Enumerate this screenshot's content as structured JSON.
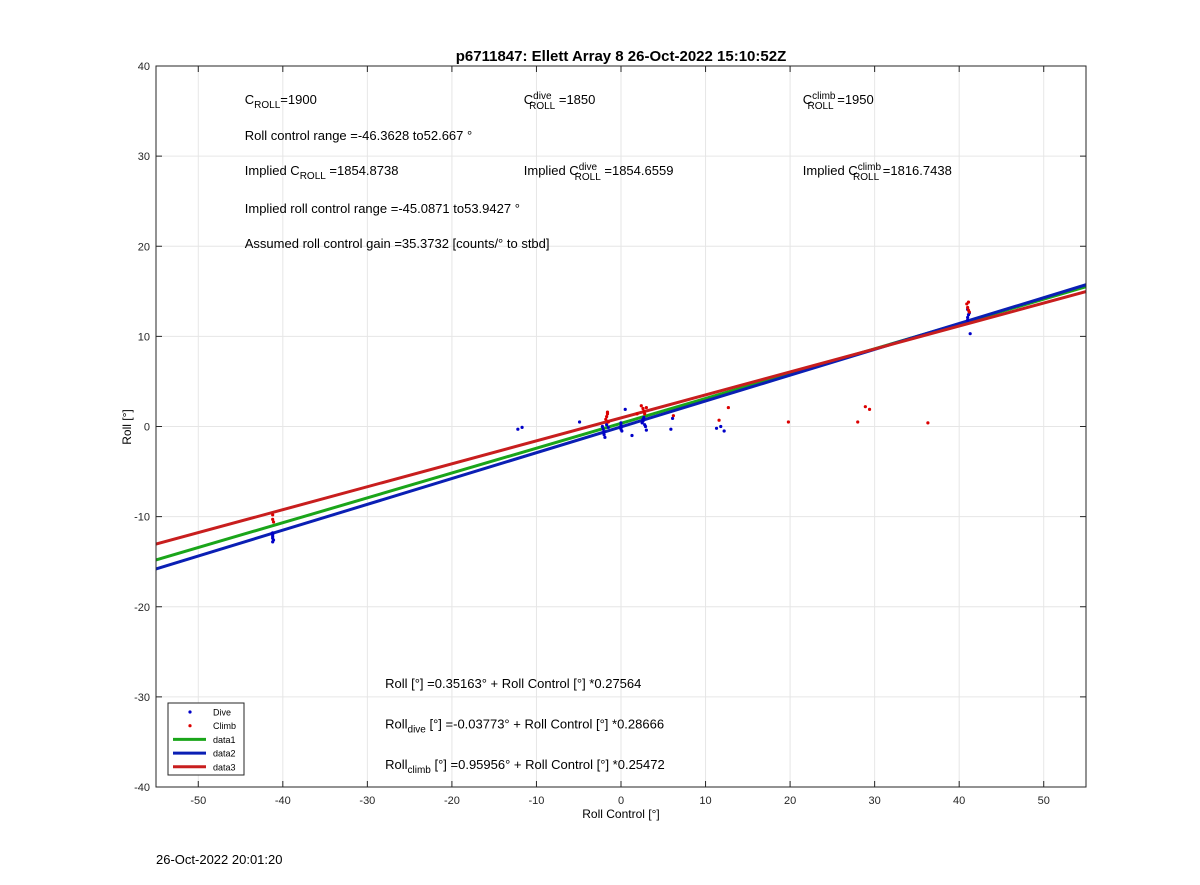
{
  "footer_timestamp": "26-Oct-2022 20:01:20",
  "colors": {
    "dive": "#0000c8",
    "climb": "#dc0000",
    "data1": "#1aa51a",
    "data2": "#0a1fb4",
    "data3": "#c81e1e",
    "grid": "#e6e6e6",
    "axis": "#262626"
  },
  "chart_data": {
    "type": "scatter",
    "title": "p6711847: Ellett Array 8 26-Oct-2022 15:10:52Z",
    "xlabel": "Roll Control [°]",
    "ylabel": "Roll [°]",
    "xlim": [
      -55,
      55
    ],
    "ylim": [
      -40,
      40
    ],
    "xticks": [
      -50,
      -40,
      -30,
      -20,
      -10,
      0,
      10,
      20,
      30,
      40,
      50
    ],
    "yticks": [
      -40,
      -30,
      -20,
      -10,
      0,
      10,
      20,
      30,
      40
    ],
    "grid": true,
    "legend_position": "bottom-left",
    "annotations": [
      {
        "id": "c-roll",
        "parts": [
          {
            "t": "C"
          },
          {
            "sub": "ROLL"
          },
          {
            "t": "=1900"
          }
        ],
        "x": -44.5,
        "y": 35.8
      },
      {
        "id": "c-roll-dive",
        "parts": [
          {
            "t": "C"
          },
          {
            "supsub": [
              "dive",
              "ROLL"
            ]
          },
          {
            "t": " =1850"
          }
        ],
        "x": -11.5,
        "y": 35.8
      },
      {
        "id": "c-roll-climb",
        "parts": [
          {
            "t": "C"
          },
          {
            "supsub": [
              "climb",
              "ROLL"
            ]
          },
          {
            "t": " =1950"
          }
        ],
        "x": 21.5,
        "y": 35.8
      },
      {
        "id": "roll-control-range",
        "parts": [
          {
            "t": "Roll control range =-46.3628 to52.667 °"
          }
        ],
        "x": -44.5,
        "y": 31.8
      },
      {
        "id": "implied-c-roll",
        "parts": [
          {
            "t": "Implied C"
          },
          {
            "sub": "ROLL"
          },
          {
            "t": " =1854.8738"
          }
        ],
        "x": -44.5,
        "y": 27.9
      },
      {
        "id": "implied-c-roll-dive",
        "parts": [
          {
            "t": "Implied C"
          },
          {
            "supsub": [
              "dive",
              "ROLL"
            ]
          },
          {
            "t": " =1854.6559"
          }
        ],
        "x": -11.5,
        "y": 27.9
      },
      {
        "id": "implied-c-roll-climb",
        "parts": [
          {
            "t": "Implied C"
          },
          {
            "supsub": [
              "climb",
              "ROLL"
            ]
          },
          {
            "t": " =1816.7438"
          }
        ],
        "x": 21.5,
        "y": 27.9
      },
      {
        "id": "implied-range",
        "parts": [
          {
            "t": "Implied roll control range =-45.0871 to53.9427 °"
          }
        ],
        "x": -44.5,
        "y": 23.7
      },
      {
        "id": "gain",
        "parts": [
          {
            "t": "Assumed roll control gain =35.3732 [counts/° to stbd]"
          }
        ],
        "x": -44.5,
        "y": 19.8
      },
      {
        "id": "eq-roll",
        "parts": [
          {
            "t": "Roll [°] =0.35163° + Roll Control [°] *0.27564"
          }
        ],
        "x": -27.9,
        "y": -29.0
      },
      {
        "id": "eq-roll-dive",
        "parts": [
          {
            "t": "Roll"
          },
          {
            "sub": "dive"
          },
          {
            "t": " [°] =-0.03773° + Roll Control [°] *0.28666"
          }
        ],
        "x": -27.9,
        "y": -33.5
      },
      {
        "id": "eq-roll-climb",
        "parts": [
          {
            "t": "Roll"
          },
          {
            "sub": "climb"
          },
          {
            "t": " [°] =0.95956° + Roll Control [°] *0.25472"
          }
        ],
        "x": -27.9,
        "y": -38.0
      }
    ],
    "series": [
      {
        "name": "Dive",
        "kind": "points",
        "color": "#0000c8",
        "points": [
          [
            -41.2,
            -11.8
          ],
          [
            -41.2,
            -12.0
          ],
          [
            -41.2,
            -12.2
          ],
          [
            -41.2,
            -12.4
          ],
          [
            -41.1,
            -12.6
          ],
          [
            -41.3,
            -11.9
          ],
          [
            -41.2,
            -12.8
          ],
          [
            -12.2,
            -0.3
          ],
          [
            -11.7,
            -0.1
          ],
          [
            -4.9,
            0.5
          ],
          [
            -2.2,
            0.0
          ],
          [
            -2.1,
            -0.3
          ],
          [
            -2.0,
            -0.6
          ],
          [
            -2.0,
            -0.9
          ],
          [
            -1.9,
            -1.2
          ],
          [
            -1.7,
            0.2
          ],
          [
            -1.5,
            -0.1
          ],
          [
            0.0,
            0.1
          ],
          [
            0.0,
            -0.1
          ],
          [
            0.0,
            -0.3
          ],
          [
            0.1,
            -0.5
          ],
          [
            0.0,
            0.4
          ],
          [
            0.5,
            1.9
          ],
          [
            1.3,
            -1.0
          ],
          [
            2.5,
            0.4
          ],
          [
            2.6,
            0.6
          ],
          [
            2.6,
            0.8
          ],
          [
            2.7,
            1.0
          ],
          [
            2.8,
            0.2
          ],
          [
            2.9,
            0.0
          ],
          [
            3.0,
            -0.4
          ],
          [
            5.9,
            -0.3
          ],
          [
            6.1,
            0.9
          ],
          [
            11.3,
            -0.2
          ],
          [
            11.8,
            0.0
          ],
          [
            12.2,
            -0.5
          ],
          [
            41.0,
            11.8
          ],
          [
            41.0,
            12.1
          ],
          [
            41.1,
            12.4
          ],
          [
            41.2,
            12.6
          ],
          [
            41.0,
            13.0
          ],
          [
            41.3,
            10.3
          ]
        ]
      },
      {
        "name": "Climb",
        "kind": "points",
        "color": "#dc0000",
        "points": [
          [
            -41.2,
            -9.8
          ],
          [
            -41.2,
            -10.3
          ],
          [
            -41.1,
            -10.6
          ],
          [
            -1.8,
            0.8
          ],
          [
            -1.7,
            1.1
          ],
          [
            -1.6,
            1.4
          ],
          [
            -1.6,
            1.6
          ],
          [
            -1.5,
            0.5
          ],
          [
            1.9,
            1.4
          ],
          [
            2.4,
            2.3
          ],
          [
            2.6,
            2.0
          ],
          [
            2.7,
            1.7
          ],
          [
            2.8,
            1.4
          ],
          [
            3.0,
            2.1
          ],
          [
            6.2,
            1.2
          ],
          [
            11.6,
            0.7
          ],
          [
            12.7,
            2.1
          ],
          [
            19.8,
            0.5
          ],
          [
            28.0,
            0.5
          ],
          [
            28.9,
            2.2
          ],
          [
            29.4,
            1.9
          ],
          [
            36.3,
            0.4
          ],
          [
            40.9,
            13.6
          ],
          [
            41.0,
            13.2
          ],
          [
            41.1,
            12.9
          ],
          [
            41.1,
            13.8
          ],
          [
            41.2,
            12.7
          ]
        ]
      },
      {
        "name": "data1",
        "kind": "line",
        "color": "#1aa51a",
        "intercept": 0.35163,
        "slope": 0.27564
      },
      {
        "name": "data2",
        "kind": "line",
        "color": "#0a1fb4",
        "intercept": -0.03773,
        "slope": 0.28666
      },
      {
        "name": "data3",
        "kind": "line",
        "color": "#c81e1e",
        "intercept": 0.95956,
        "slope": 0.25472
      }
    ]
  }
}
